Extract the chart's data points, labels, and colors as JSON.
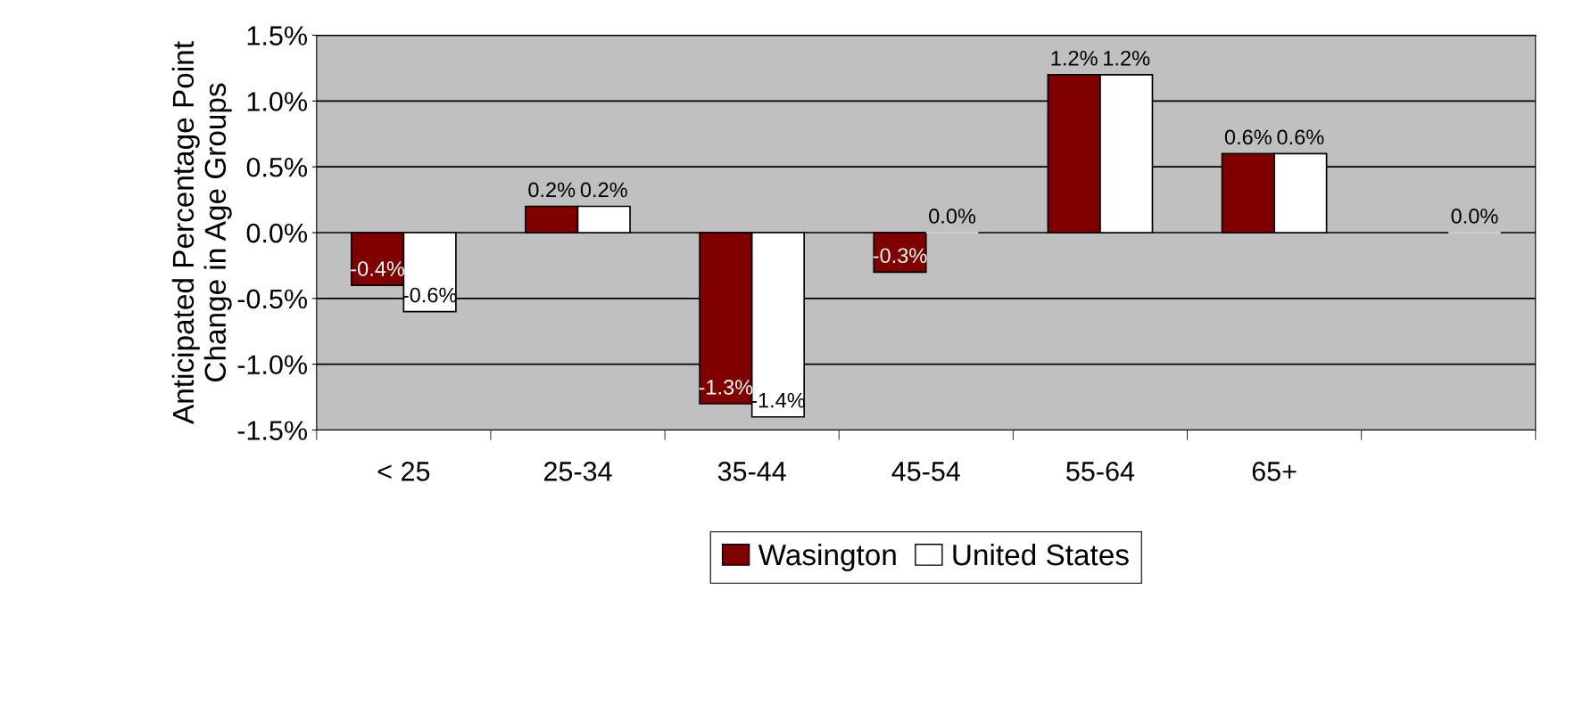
{
  "chart_data": {
    "type": "bar",
    "ylabel": "Anticipated Percentage Point Change in Age Groups",
    "categories": [
      "< 25",
      "25-34",
      "35-44",
      "45-54",
      "55-64",
      "65+",
      null
    ],
    "series": [
      {
        "name": "Wasington",
        "color": "#800000",
        "values": [
          -0.4,
          0.2,
          -1.3,
          -0.3,
          1.2,
          0.6,
          null
        ],
        "value_labels": [
          "-0.4%",
          "0.2%",
          "-1.3%",
          "-0.3%",
          "1.2%",
          "0.6%",
          null
        ]
      },
      {
        "name": "United States",
        "color": "#ffffff",
        "values": [
          -0.6,
          0.2,
          -1.4,
          0.0,
          1.2,
          0.6,
          0.0
        ],
        "value_labels": [
          "-0.6%",
          "0.2%",
          "-1.4%",
          "0.0%",
          "1.2%",
          "0.6%",
          "0.0%"
        ]
      }
    ],
    "ylim": [
      -1.5,
      1.5
    ],
    "yticks": [
      {
        "value": -1.5,
        "label": "-1.5%"
      },
      {
        "value": -1.0,
        "label": "-1.0%"
      },
      {
        "value": -0.5,
        "label": "-0.5%"
      },
      {
        "value": 0.0,
        "label": "0.0%"
      },
      {
        "value": 0.5,
        "label": "0.5%"
      },
      {
        "value": 1.0,
        "label": "1.0%"
      },
      {
        "value": 1.5,
        "label": "1.5%"
      }
    ],
    "grid": "y",
    "legend": "bottom"
  }
}
